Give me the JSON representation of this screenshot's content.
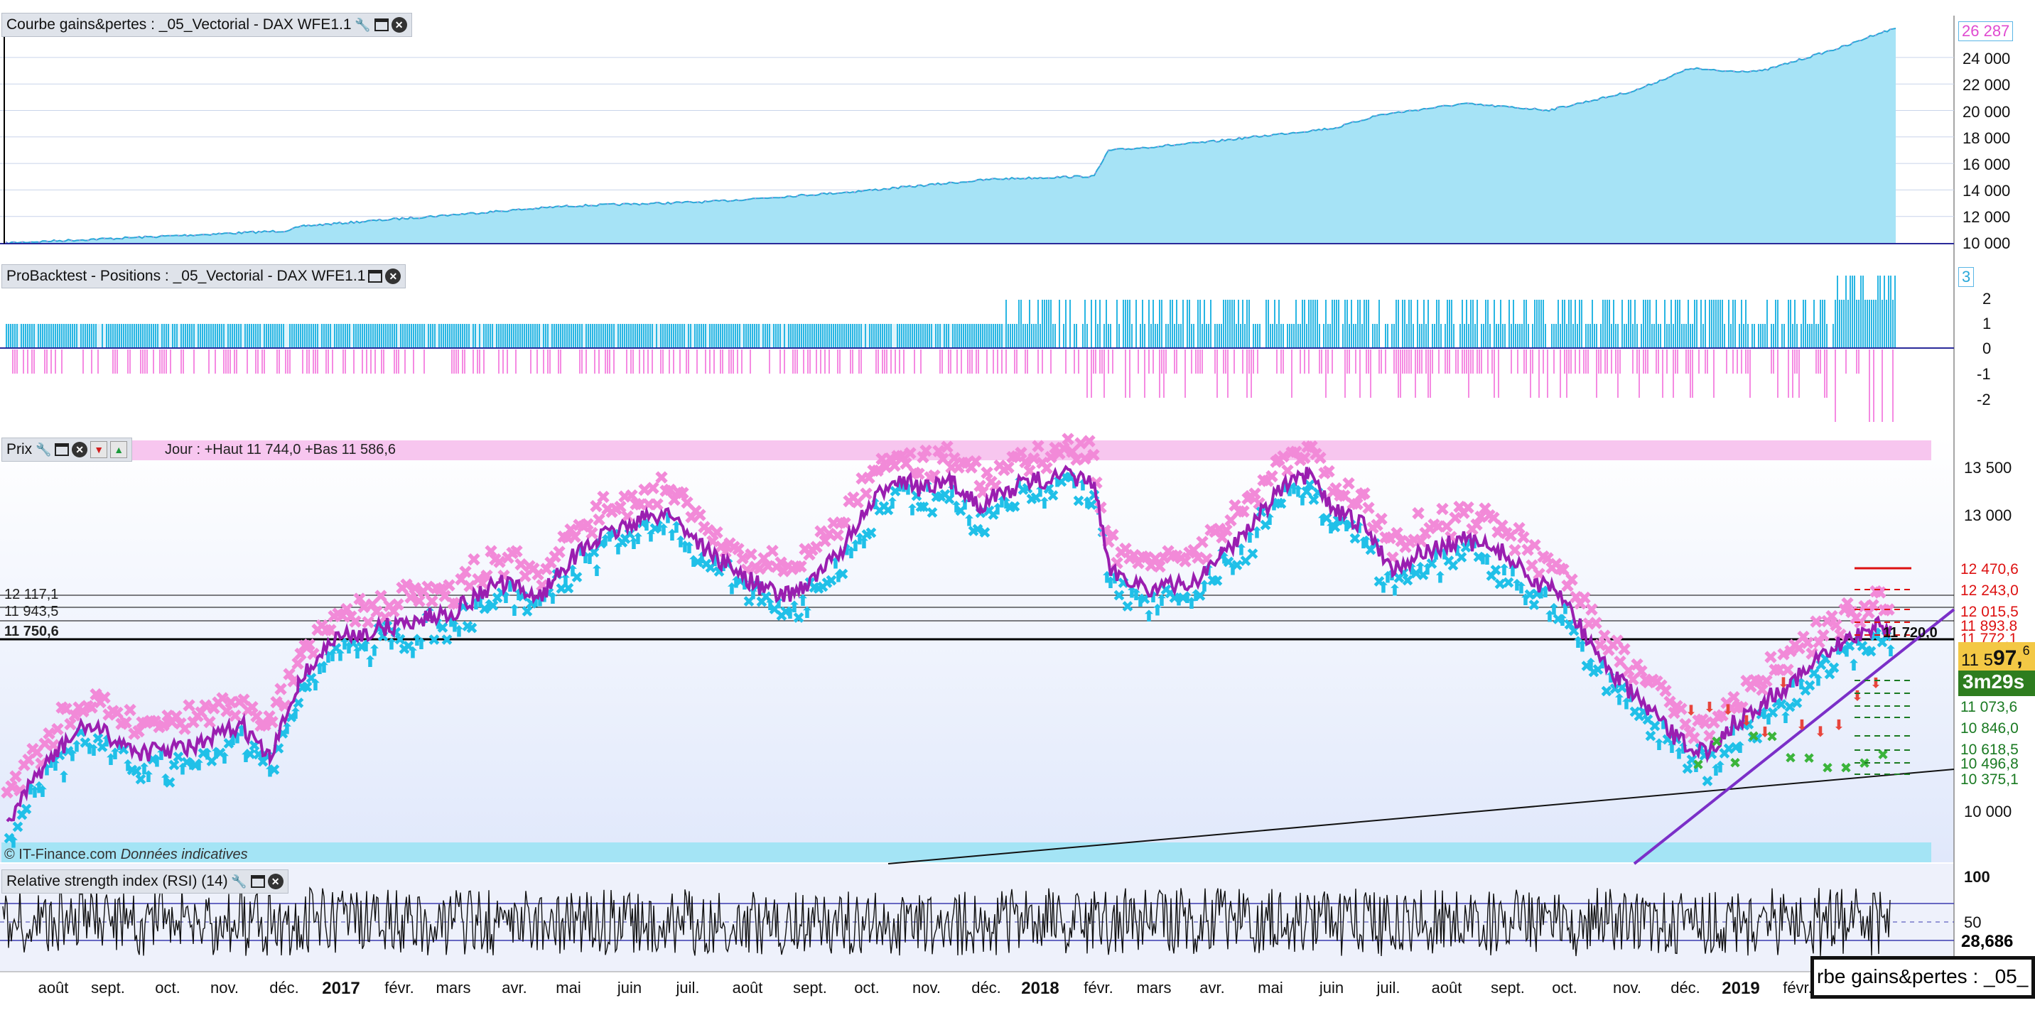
{
  "panels": {
    "equity": {
      "title": "Courbe gains&pertes : _05_Vectorial - DAX WFE1.1",
      "yticks": [
        "24 000",
        "22 000",
        "20 000",
        "18 000",
        "16 000",
        "14 000",
        "12 000",
        "10 000"
      ],
      "last_value": "26 287",
      "colors": {
        "fill": "#a6e3f6",
        "line": "#2aa8d8",
        "marks": "#f07be0"
      }
    },
    "positions": {
      "title": "ProBacktest - Positions : _05_Vectorial - DAX WFE1.1",
      "yticks": [
        "2",
        "1",
        "0",
        "-1",
        "-2"
      ],
      "last_value": "3",
      "colors": {
        "long": "#29b6e3",
        "short": "#f58be2"
      }
    },
    "price": {
      "title": "Prix",
      "info": "Jour : +Haut 11 744,0 +Bas 11 586,6",
      "yticks": [
        "13 500",
        "13 000",
        "10 000"
      ],
      "left_levels": [
        "12 117,1",
        "11 943,5",
        "11 750,6"
      ],
      "right_red_levels": [
        "12 470,6",
        "12 243,0",
        "12 015,5",
        "11 893,8",
        "11 772,1"
      ],
      "right_green_levels": [
        "11 073,6",
        "10 846,0",
        "10 618,5",
        "10 496,8",
        "10 375,1"
      ],
      "cursor_label": "11 720,0",
      "current_price_prefix": "11 5",
      "current_price_big": "97,",
      "current_price_suffix": "6",
      "timer": "3m29s",
      "credit": "© IT-Finance.com",
      "credit_note": "Données indicatives",
      "colors": {
        "cross": "#f28ad8",
        "arrow": "#20c0e8",
        "price_line": "#9a1eb0",
        "trend": "#7b2fc8",
        "short_entry": "#e8453c",
        "long_exit": "#3bb43b"
      }
    },
    "rsi": {
      "title": "Relative strength index (RSI) (14)",
      "yticks": [
        "100",
        "50"
      ],
      "last_value": "28,686"
    }
  },
  "xaxis": [
    {
      "label": "août",
      "year": false
    },
    {
      "label": "sept.",
      "year": false
    },
    {
      "label": "oct.",
      "year": false
    },
    {
      "label": "nov.",
      "year": false
    },
    {
      "label": "déc.",
      "year": false
    },
    {
      "label": "2017",
      "year": true
    },
    {
      "label": "févr.",
      "year": false
    },
    {
      "label": "mars",
      "year": false
    },
    {
      "label": "avr.",
      "year": false
    },
    {
      "label": "mai",
      "year": false
    },
    {
      "label": "juin",
      "year": false
    },
    {
      "label": "juil.",
      "year": false
    },
    {
      "label": "août",
      "year": false
    },
    {
      "label": "sept.",
      "year": false
    },
    {
      "label": "oct.",
      "year": false
    },
    {
      "label": "nov.",
      "year": false
    },
    {
      "label": "déc.",
      "year": false
    },
    {
      "label": "2018",
      "year": true
    },
    {
      "label": "févr.",
      "year": false
    },
    {
      "label": "mars",
      "year": false
    },
    {
      "label": "avr.",
      "year": false
    },
    {
      "label": "mai",
      "year": false
    },
    {
      "label": "juin",
      "year": false
    },
    {
      "label": "juil.",
      "year": false
    },
    {
      "label": "août",
      "year": false
    },
    {
      "label": "sept.",
      "year": false
    },
    {
      "label": "oct.",
      "year": false
    },
    {
      "label": "nov.",
      "year": false
    },
    {
      "label": "déc.",
      "year": false
    },
    {
      "label": "2019",
      "year": true
    },
    {
      "label": "févr.",
      "year": false
    }
  ],
  "tooltip": "rbe gains&pertes : _05_",
  "icons": {
    "settings": "wrench-icon",
    "maximize": "window-icon",
    "close": "close-icon",
    "move_down": "arrow-down-icon",
    "move_up": "arrow-up-icon"
  }
}
